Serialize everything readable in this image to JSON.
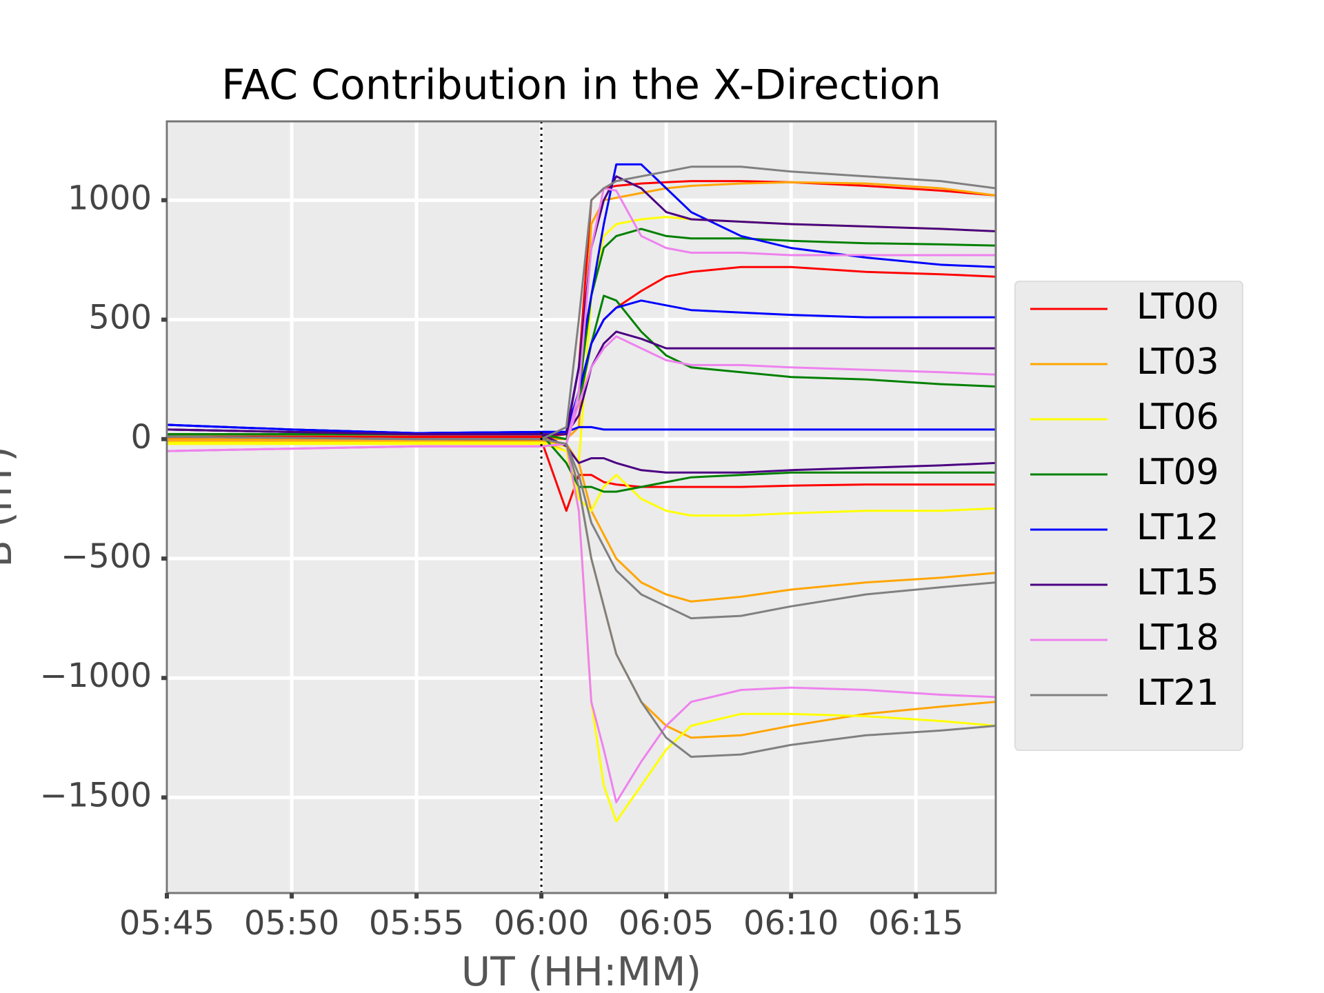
{
  "chart_data": {
    "type": "line",
    "title": "FAC Contribution in the X-Direction",
    "xlabel": "UT (HH:MM)",
    "ylabel": "B (nT)",
    "grid": true,
    "legend": "outside right",
    "vline": 360,
    "xlim": [
      345,
      378.2
    ],
    "xticks": [
      {
        "value": 345,
        "label": "05:45"
      },
      {
        "value": 350,
        "label": "05:50"
      },
      {
        "value": 355,
        "label": "05:55"
      },
      {
        "value": 360,
        "label": "06:00"
      },
      {
        "value": 365,
        "label": "06:05"
      },
      {
        "value": 370,
        "label": "06:10"
      },
      {
        "value": 375,
        "label": "06:15"
      }
    ],
    "ylim": [
      -1900,
      1330
    ],
    "yticks": [
      {
        "value": -1500,
        "label": "−1500"
      },
      {
        "value": -1000,
        "label": "−1000"
      },
      {
        "value": -500,
        "label": "−500"
      },
      0,
      500,
      1000
    ],
    "x": [
      345,
      350,
      355,
      360,
      361,
      361.5,
      362,
      362.5,
      363,
      364,
      365,
      366,
      368,
      370,
      373,
      376,
      378.2
    ],
    "series": [
      {
        "name": "LT00",
        "color": "#ff0000",
        "values": [
          [
            10,
            10,
            10,
            10,
            20,
            300,
            1000,
            1050,
            1060,
            1070,
            1075,
            1080,
            1080,
            1075,
            1060,
            1040,
            1020
          ],
          [
            5,
            5,
            5,
            5,
            0,
            150,
            400,
            500,
            550,
            620,
            680,
            700,
            720,
            720,
            700,
            690,
            680
          ],
          [
            0,
            0,
            0,
            -5,
            -300,
            -150,
            -150,
            -180,
            -190,
            -200,
            -200,
            -200,
            -200,
            -195,
            -190,
            -190,
            -190
          ]
        ]
      },
      {
        "name": "LT03",
        "color": "#ffa500",
        "values": [
          [
            0,
            0,
            0,
            0,
            0,
            50,
            900,
            1000,
            1010,
            1030,
            1050,
            1060,
            1070,
            1075,
            1070,
            1050,
            1020
          ],
          [
            -10,
            -10,
            -10,
            -10,
            -50,
            -200,
            -500,
            -700,
            -900,
            -1100,
            -1200,
            -1250,
            -1240,
            -1200,
            -1150,
            -1120,
            -1100
          ],
          [
            -10,
            -10,
            -10,
            -10,
            -20,
            -100,
            -300,
            -400,
            -500,
            -600,
            -650,
            -680,
            -660,
            -630,
            -600,
            -580,
            -560
          ]
        ]
      },
      {
        "name": "LT06",
        "color": "#ffff00",
        "values": [
          [
            -20,
            -20,
            -20,
            -20,
            -50,
            -300,
            -1100,
            -1450,
            -1600,
            -1450,
            -1300,
            -1200,
            -1150,
            -1150,
            -1160,
            -1180,
            -1200
          ],
          [
            -15,
            -15,
            -15,
            -15,
            -30,
            -100,
            600,
            850,
            900,
            920,
            930,
            920,
            910,
            900,
            890,
            880,
            870
          ],
          [
            -15,
            -15,
            -15,
            -15,
            -30,
            -250,
            -300,
            -200,
            -150,
            -250,
            -300,
            -320,
            -320,
            -310,
            -300,
            -300,
            -290
          ]
        ]
      },
      {
        "name": "LT09",
        "color": "#008000",
        "values": [
          [
            20,
            20,
            20,
            20,
            0,
            200,
            600,
            800,
            850,
            880,
            850,
            840,
            840,
            830,
            820,
            815,
            810
          ],
          [
            20,
            20,
            20,
            20,
            0,
            150,
            400,
            600,
            580,
            450,
            350,
            300,
            280,
            260,
            250,
            230,
            220
          ],
          [
            20,
            20,
            20,
            20,
            -100,
            -200,
            -200,
            -220,
            -220,
            -200,
            -180,
            -160,
            -150,
            -140,
            -140,
            -140,
            -140
          ]
        ]
      },
      {
        "name": "LT12",
        "color": "#0000ff",
        "values": [
          [
            60,
            40,
            25,
            30,
            30,
            300,
            600,
            900,
            1150,
            1150,
            1050,
            950,
            850,
            800,
            760,
            730,
            720
          ],
          [
            60,
            40,
            25,
            30,
            30,
            200,
            400,
            500,
            550,
            580,
            560,
            540,
            530,
            520,
            510,
            510,
            510
          ],
          [
            60,
            40,
            25,
            30,
            30,
            50,
            50,
            40,
            40,
            40,
            40,
            40,
            40,
            40,
            40,
            40,
            40
          ]
        ]
      },
      {
        "name": "LT15",
        "color": "#4b0082",
        "values": [
          [
            40,
            30,
            20,
            20,
            20,
            300,
            800,
            1000,
            1100,
            1050,
            950,
            920,
            910,
            900,
            890,
            880,
            870
          ],
          [
            40,
            30,
            20,
            20,
            20,
            100,
            300,
            400,
            450,
            420,
            380,
            380,
            380,
            380,
            380,
            380,
            380
          ],
          [
            40,
            30,
            20,
            20,
            -30,
            -100,
            -80,
            -80,
            -100,
            -130,
            -140,
            -140,
            -140,
            -130,
            -120,
            -110,
            -100
          ]
        ]
      },
      {
        "name": "LT18",
        "color": "#ee82ee",
        "values": [
          [
            -50,
            -40,
            -30,
            -30,
            -20,
            -300,
            -1100,
            -1300,
            -1520,
            -1350,
            -1200,
            -1100,
            -1050,
            -1040,
            -1050,
            -1070,
            -1080
          ],
          [
            -50,
            -40,
            -30,
            -30,
            -20,
            200,
            800,
            1050,
            1040,
            850,
            800,
            780,
            780,
            770,
            770,
            770,
            770
          ],
          [
            -50,
            -40,
            -30,
            -30,
            -20,
            150,
            300,
            380,
            430,
            380,
            330,
            310,
            310,
            300,
            290,
            280,
            270
          ]
        ]
      },
      {
        "name": "LT21",
        "color": "#808080",
        "values": [
          [
            10,
            5,
            0,
            0,
            -20,
            -200,
            -500,
            -700,
            -900,
            -1100,
            -1250,
            -1330,
            -1320,
            -1280,
            -1240,
            -1220,
            -1200
          ],
          [
            10,
            5,
            0,
            0,
            50,
            500,
            1000,
            1050,
            1080,
            1100,
            1120,
            1140,
            1140,
            1120,
            1100,
            1080,
            1050
          ],
          [
            10,
            5,
            0,
            0,
            -20,
            -150,
            -350,
            -450,
            -550,
            -650,
            -700,
            -750,
            -740,
            -700,
            -650,
            -620,
            -600
          ]
        ]
      }
    ]
  }
}
